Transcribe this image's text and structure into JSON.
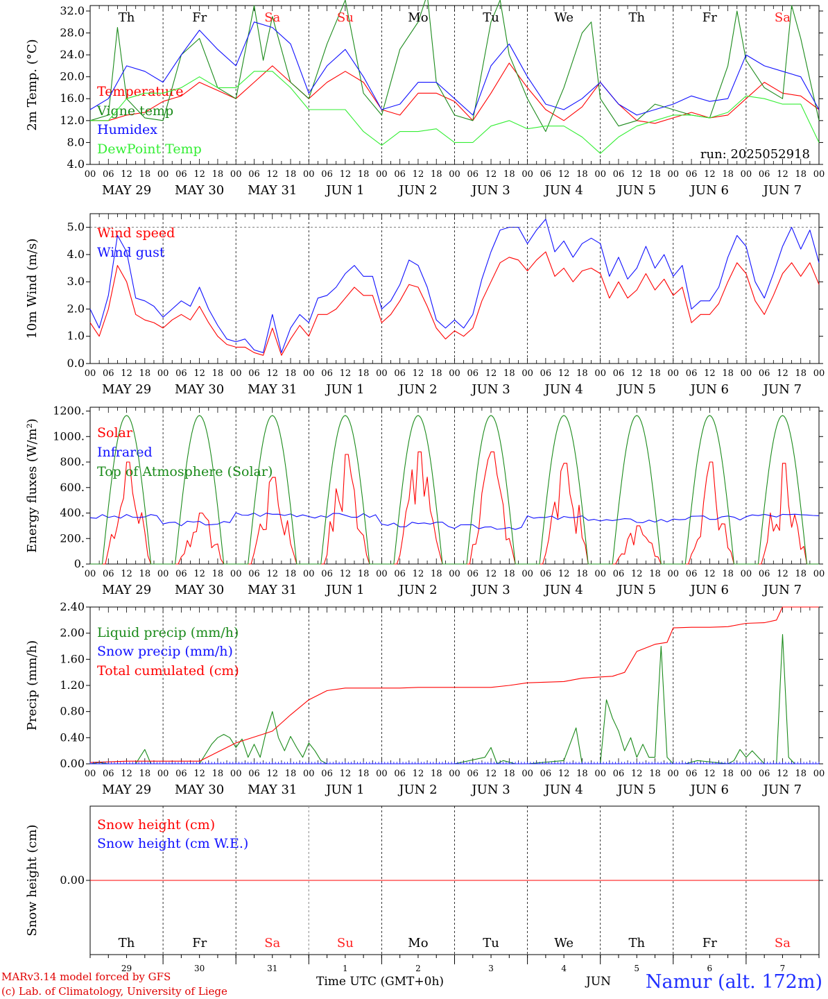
{
  "colors": {
    "red": "#ff0000",
    "green": "#1a8a1a",
    "blue": "#1010ff",
    "lightgreen": "#33ee33",
    "weekend": "#ff2020"
  },
  "time": {
    "hour_ticks": [
      "00",
      "06",
      "12",
      "18"
    ],
    "dates": [
      "MAY 29",
      "MAY 30",
      "MAY 31",
      "JUN  1",
      "JUN  2",
      "JUN  3",
      "JUN  4",
      "JUN  5",
      "JUN  6",
      "JUN  7"
    ],
    "weekdays": [
      "Th",
      "Fr",
      "Sa",
      "Su",
      "Mo",
      "Tu",
      "We",
      "Th",
      "Fr",
      "Sa"
    ],
    "weekend_flags": [
      false,
      false,
      true,
      true,
      false,
      false,
      false,
      false,
      false,
      true
    ],
    "day_numbers": [
      "29",
      "30",
      "31",
      "1",
      "2",
      "3",
      "4",
      "5",
      "6",
      "7"
    ]
  },
  "footer": {
    "credit_line1": "MARv3.14 model forced by GFS",
    "credit_line2": "(c) Lab. of Climatology, University of Liege",
    "xlabel": "Time UTC (GMT+0h)",
    "month": "JUN",
    "station": "Namur (alt. 172m)"
  },
  "chart_data": [
    {
      "type": "line",
      "ylabel": "2m Temp. (°C)",
      "ylim": [
        4,
        33
      ],
      "yticks": [
        "4.0",
        "8.0",
        "12.0",
        "16.0",
        "20.0",
        "24.0",
        "28.0",
        "32.0"
      ],
      "run_label": "run: 2025052918",
      "series": [
        {
          "name": "Temperature",
          "color": "#ff0000",
          "x": [
            0,
            6,
            12,
            18,
            24,
            30,
            36,
            42,
            48,
            54,
            60,
            66,
            72,
            78,
            84,
            90,
            96,
            102,
            108,
            114,
            120,
            126,
            132,
            138,
            144,
            150,
            156,
            162,
            168,
            174,
            180,
            186,
            192,
            198,
            204,
            210,
            216,
            222,
            228,
            234,
            240
          ],
          "y": [
            12,
            12,
            13,
            13.5,
            15.5,
            16.5,
            19,
            17.5,
            16,
            19,
            22,
            19,
            16,
            19,
            21,
            19,
            14,
            13,
            17,
            17,
            15.5,
            12,
            17,
            22.5,
            18,
            14,
            12,
            14.5,
            19,
            15,
            12,
            11.5,
            12.5,
            13.5,
            12.5,
            13,
            16,
            19,
            17,
            16.5,
            14
          ]
        },
        {
          "name": "Vigne temp",
          "color": "#1a8a1a",
          "x": [
            0,
            6,
            9,
            12,
            18,
            24,
            30,
            36,
            42,
            48,
            54,
            57,
            60,
            66,
            72,
            78,
            84,
            90,
            96,
            102,
            108,
            111,
            114,
            120,
            126,
            132,
            135,
            138,
            144,
            150,
            156,
            162,
            165,
            168,
            174,
            180,
            186,
            192,
            198,
            204,
            210,
            213,
            216,
            222,
            228,
            231,
            234,
            240
          ],
          "y": [
            12,
            13,
            29,
            16,
            12.5,
            12,
            24,
            27,
            18,
            16,
            33,
            23,
            31,
            19,
            16,
            26,
            34,
            17,
            13,
            25,
            30,
            35,
            19,
            13,
            12,
            30,
            34,
            24,
            16,
            10,
            18,
            28,
            30,
            16,
            11,
            12,
            15,
            14,
            13,
            12.5,
            22,
            32,
            23,
            18,
            16,
            33,
            27,
            12
          ]
        },
        {
          "name": "Humidex",
          "color": "#1010ff",
          "x": [
            0,
            6,
            12,
            18,
            24,
            30,
            36,
            42,
            48,
            54,
            60,
            66,
            72,
            78,
            84,
            90,
            96,
            102,
            108,
            114,
            120,
            126,
            132,
            138,
            144,
            150,
            156,
            162,
            168,
            174,
            180,
            186,
            192,
            198,
            204,
            210,
            216,
            222,
            228,
            234,
            240
          ],
          "y": [
            14,
            16,
            22,
            21,
            19,
            24,
            28.5,
            25,
            22,
            30,
            29,
            26,
            17,
            22,
            25,
            20,
            14,
            15,
            19,
            19,
            16,
            13,
            22,
            26,
            20,
            15,
            14,
            16,
            19,
            15,
            13,
            14,
            15,
            16.5,
            15.5,
            16,
            24,
            22,
            21,
            20,
            14
          ]
        },
        {
          "name": "DewPoint Temp",
          "color": "#33ee33",
          "x": [
            0,
            6,
            12,
            18,
            24,
            30,
            36,
            42,
            48,
            54,
            60,
            66,
            72,
            78,
            84,
            90,
            96,
            102,
            108,
            114,
            120,
            126,
            132,
            138,
            144,
            150,
            156,
            162,
            168,
            174,
            180,
            186,
            192,
            198,
            204,
            210,
            216,
            222,
            228,
            234,
            240
          ],
          "y": [
            12,
            12,
            16,
            17,
            17,
            18,
            20,
            18,
            18,
            21,
            21,
            18,
            14,
            14,
            14,
            10,
            7.5,
            10,
            10,
            10.5,
            8,
            8,
            11,
            12,
            10.5,
            11,
            11,
            9,
            6,
            9,
            11,
            12,
            13,
            13,
            12.5,
            13.5,
            16.5,
            16,
            15,
            15,
            8
          ]
        }
      ]
    },
    {
      "type": "line",
      "ylabel": "10m Wind (m/s)",
      "ylim": [
        0,
        5.5
      ],
      "yticks": [
        "0.0",
        "1.0",
        "2.0",
        "3.0",
        "4.0",
        "5.0"
      ],
      "series": [
        {
          "name": "Wind speed",
          "color": "#ff0000",
          "x": [
            0,
            3,
            6,
            9,
            12,
            15,
            18,
            21,
            24,
            27,
            30,
            33,
            36,
            39,
            42,
            45,
            48,
            51,
            54,
            57,
            60,
            63,
            66,
            69,
            72,
            75,
            78,
            81,
            84,
            87,
            90,
            93,
            96,
            99,
            102,
            105,
            108,
            111,
            114,
            117,
            120,
            123,
            126,
            129,
            132,
            135,
            138,
            141,
            144,
            147,
            150,
            153,
            156,
            159,
            162,
            165,
            168,
            171,
            174,
            177,
            180,
            183,
            186,
            189,
            192,
            195,
            198,
            201,
            204,
            207,
            210,
            213,
            216,
            219,
            222,
            225,
            228,
            231,
            234,
            237,
            240
          ],
          "y": [
            1.5,
            1.0,
            2.0,
            3.6,
            3.0,
            1.8,
            1.6,
            1.5,
            1.3,
            1.6,
            1.8,
            1.6,
            2.1,
            1.5,
            1.0,
            0.7,
            0.6,
            0.6,
            0.4,
            0.3,
            1.3,
            0.3,
            0.9,
            1.4,
            1.0,
            1.8,
            1.8,
            2.0,
            2.4,
            2.8,
            2.5,
            2.5,
            1.5,
            1.8,
            2.3,
            2.9,
            2.8,
            2.1,
            1.3,
            0.9,
            1.2,
            1.0,
            1.3,
            2.3,
            3.0,
            3.7,
            3.9,
            3.8,
            3.4,
            3.8,
            4.1,
            3.2,
            3.5,
            3.0,
            3.4,
            3.5,
            3.3,
            2.4,
            3.0,
            2.4,
            2.7,
            3.3,
            2.7,
            3.1,
            2.5,
            2.8,
            1.5,
            1.8,
            1.8,
            2.2,
            3.0,
            3.7,
            3.3,
            2.3,
            1.8,
            2.5,
            3.3,
            3.7,
            3.2,
            3.7,
            2.9
          ]
        },
        {
          "name": "Wind gust",
          "color": "#1010ff",
          "x": [
            0,
            3,
            6,
            9,
            12,
            15,
            18,
            21,
            24,
            27,
            30,
            33,
            36,
            39,
            42,
            45,
            48,
            51,
            54,
            57,
            60,
            63,
            66,
            69,
            72,
            75,
            78,
            81,
            84,
            87,
            90,
            93,
            96,
            99,
            102,
            105,
            108,
            111,
            114,
            117,
            120,
            123,
            126,
            129,
            132,
            135,
            138,
            141,
            144,
            147,
            150,
            153,
            156,
            159,
            162,
            165,
            168,
            171,
            174,
            177,
            180,
            183,
            186,
            189,
            192,
            195,
            198,
            201,
            204,
            207,
            210,
            213,
            216,
            219,
            222,
            225,
            228,
            231,
            234,
            237,
            240
          ],
          "y": [
            2.0,
            1.3,
            2.5,
            4.7,
            4.1,
            2.4,
            2.3,
            2.1,
            1.7,
            2.0,
            2.3,
            2.1,
            2.8,
            2.0,
            1.4,
            0.9,
            0.8,
            0.9,
            0.5,
            0.4,
            1.8,
            0.4,
            1.3,
            1.8,
            1.5,
            2.4,
            2.5,
            2.8,
            3.3,
            3.6,
            3.2,
            3.2,
            2.0,
            2.3,
            2.9,
            3.8,
            3.6,
            2.8,
            1.6,
            1.3,
            1.6,
            1.3,
            1.8,
            3.1,
            4.1,
            4.9,
            5.0,
            5.0,
            4.4,
            4.9,
            5.3,
            4.1,
            4.5,
            3.9,
            4.4,
            4.6,
            4.4,
            3.2,
            3.9,
            3.1,
            3.5,
            4.3,
            3.5,
            4.0,
            3.2,
            3.6,
            2.0,
            2.3,
            2.3,
            2.8,
            3.9,
            4.7,
            4.3,
            3.0,
            2.4,
            3.3,
            4.3,
            5.0,
            4.2,
            4.9,
            3.7
          ]
        }
      ]
    },
    {
      "type": "line",
      "ylabel": "Energy fluxes (W/m²)",
      "ylim": [
        0,
        1230
      ],
      "yticks": [
        "0.",
        "200.",
        "400.",
        "600.",
        "800.",
        "1000.",
        "1200."
      ],
      "series": [
        {
          "name": "Solar",
          "color": "#ff0000",
          "peaks": [
            800,
            400,
            680,
            860,
            880,
            880,
            790,
            300,
            800,
            790
          ]
        },
        {
          "name": "Infrared",
          "color": "#1010ff",
          "levels": [
            370,
            320,
            390,
            380,
            310,
            290,
            360,
            340,
            360,
            380,
            360
          ]
        },
        {
          "name": "Top of Atmosphere (Solar)",
          "color": "#1a8a1a",
          "peak": 1165,
          "daylight_hours": [
            4,
            20
          ]
        }
      ]
    },
    {
      "type": "line",
      "ylabel": "Precip (mm/h)",
      "ylim": [
        0,
        2.4
      ],
      "yticks": [
        "0.00",
        "0.40",
        "0.80",
        "1.20",
        "1.60",
        "2.00",
        "2.40"
      ],
      "series": [
        {
          "name": "Liquid precip (mm/h)",
          "color": "#1a8a1a",
          "x": [
            0,
            3,
            6,
            9,
            12,
            15,
            18,
            20,
            22,
            24,
            36,
            40,
            42,
            44,
            46,
            48,
            50,
            52,
            54,
            56,
            58,
            60,
            62,
            64,
            66,
            68,
            70,
            72,
            74,
            76,
            78,
            96,
            120,
            130,
            132,
            134,
            136,
            140,
            144,
            156,
            160,
            162,
            164,
            168,
            170,
            172,
            174,
            176,
            178,
            180,
            182,
            184,
            186,
            188,
            190,
            192,
            194,
            196,
            200,
            210,
            212,
            214,
            216,
            218,
            222,
            226,
            228,
            230,
            232,
            234,
            236,
            240
          ],
          "y": [
            0,
            0.02,
            0,
            0,
            0,
            0,
            0.22,
            0,
            0,
            0,
            0,
            0.3,
            0.4,
            0.45,
            0.4,
            0.25,
            0.38,
            0.1,
            0.3,
            0.1,
            0.5,
            0.8,
            0.4,
            0.2,
            0.42,
            0.25,
            0.1,
            0.32,
            0.2,
            0.05,
            0,
            0,
            0,
            0.1,
            0.25,
            0,
            0.05,
            0,
            0,
            0.05,
            0.55,
            0,
            0,
            0,
            0.98,
            0.7,
            0.5,
            0.2,
            0.4,
            0.1,
            0.3,
            0.1,
            0.1,
            1.8,
            0.1,
            0,
            0,
            0,
            0.05,
            0,
            0.05,
            0.22,
            0.1,
            0.2,
            0,
            0,
            1.98,
            0.1,
            0,
            0,
            0,
            0
          ]
        },
        {
          "name": "Snow precip (mm/h)",
          "color": "#1010ff",
          "constant": 0
        },
        {
          "name": "Total cumulated (cm)",
          "color": "#ff0000",
          "x": [
            0,
            6,
            12,
            18,
            24,
            30,
            36,
            42,
            48,
            54,
            60,
            66,
            72,
            78,
            84,
            90,
            96,
            102,
            108,
            114,
            120,
            126,
            132,
            138,
            144,
            150,
            156,
            162,
            168,
            172,
            176,
            180,
            186,
            190,
            192,
            198,
            204,
            210,
            216,
            222,
            226,
            228,
            234,
            240
          ],
          "y": [
            0.02,
            0.03,
            0.04,
            0.04,
            0.04,
            0.04,
            0.04,
            0.18,
            0.32,
            0.41,
            0.5,
            0.75,
            0.98,
            1.12,
            1.16,
            1.16,
            1.16,
            1.16,
            1.17,
            1.17,
            1.17,
            1.17,
            1.17,
            1.2,
            1.24,
            1.25,
            1.26,
            1.31,
            1.33,
            1.34,
            1.4,
            1.72,
            1.83,
            1.86,
            2.08,
            2.09,
            2.09,
            2.1,
            2.15,
            2.16,
            2.2,
            2.4,
            2.4,
            2.4
          ]
        }
      ]
    },
    {
      "type": "line",
      "ylabel": "Snow height (cm)",
      "yticks": [
        "0.00"
      ],
      "series": [
        {
          "name": "Snow height (cm)",
          "color": "#ff0000",
          "constant": 0
        },
        {
          "name": "Snow height (cm W.E.)",
          "color": "#1010ff",
          "constant": 0
        }
      ]
    }
  ]
}
